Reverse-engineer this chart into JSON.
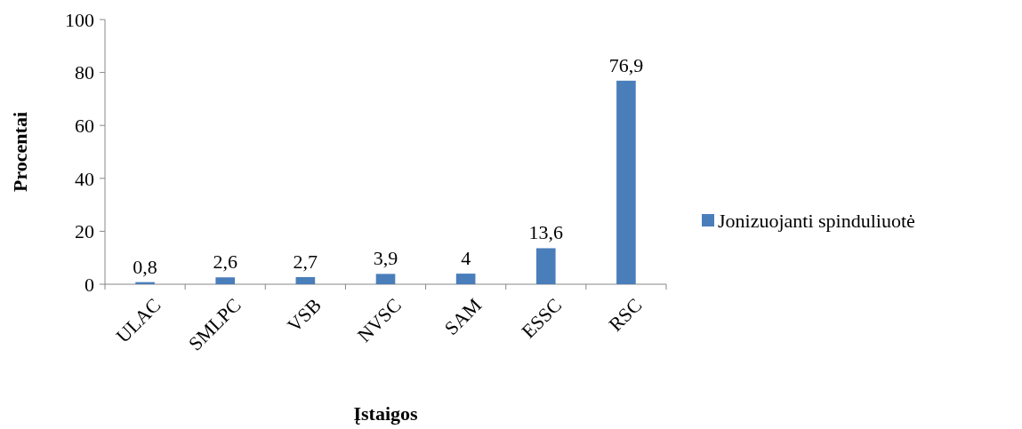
{
  "chart_data": {
    "type": "bar",
    "xlabel": "Įstaigos",
    "ylabel": "Procentai",
    "categories": [
      "ULAC",
      "SMLPC",
      "VSB",
      "NVSC",
      "SAM",
      "ESSC",
      "RSC"
    ],
    "series": [
      {
        "name": "Jonizuojanti spinduliuotė",
        "color": "#4a7ebb",
        "values": [
          0.8,
          2.6,
          2.7,
          3.9,
          4,
          13.6,
          76.9
        ],
        "value_labels": [
          "0,8",
          "2,6",
          "2,7",
          "3,9",
          "4",
          "13,6",
          "76,9"
        ]
      }
    ],
    "ylim": [
      0,
      100
    ],
    "yticks": [
      0,
      20,
      40,
      60,
      80,
      100
    ],
    "grid": false,
    "legend": "right"
  }
}
